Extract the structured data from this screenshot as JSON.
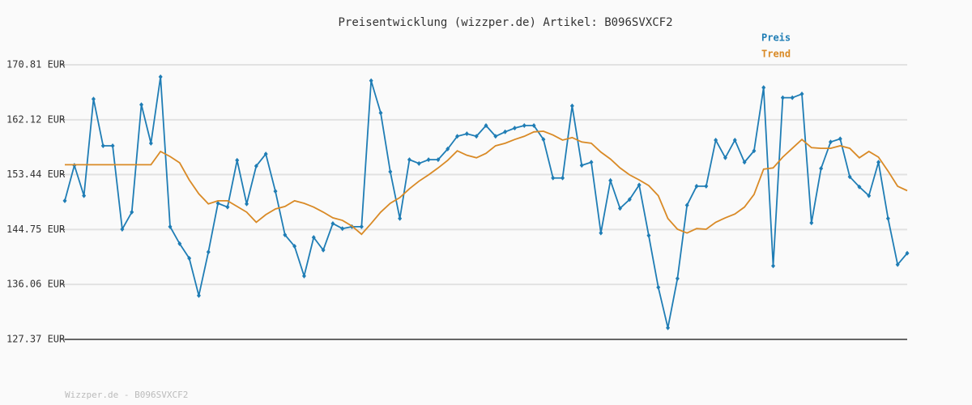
{
  "chart_data": {
    "type": "line",
    "title": "Preisentwicklung (wizzper.de) Artikel: B096SVXCF2",
    "footer": "Wizzper.de - B096SVXCF2",
    "ylim": [
      127.37,
      170.81
    ],
    "yticks": [
      {
        "value": 127.37,
        "label": "127.37 EUR"
      },
      {
        "value": 136.06,
        "label": "136.06 EUR"
      },
      {
        "value": 144.75,
        "label": "144.75 EUR"
      },
      {
        "value": 153.44,
        "label": "153.44 EUR"
      },
      {
        "value": 162.12,
        "label": "162.12 EUR"
      },
      {
        "value": 170.81,
        "label": "170.81 EUR"
      }
    ],
    "grid": true,
    "legend": "top-right",
    "series": [
      {
        "name": "Preis",
        "color": "#1f7db5",
        "markers": true,
        "values": [
          149.3,
          154.9,
          150.1,
          165.4,
          158.0,
          158.0,
          144.8,
          147.5,
          164.5,
          158.4,
          168.9,
          145.2,
          142.5,
          140.2,
          134.3,
          141.2,
          148.9,
          148.3,
          155.7,
          148.8,
          154.8,
          156.7,
          150.8,
          143.9,
          142.1,
          137.4,
          143.5,
          141.5,
          145.7,
          144.9,
          145.2,
          145.2,
          168.3,
          163.2,
          153.9,
          146.5,
          155.8,
          155.2,
          155.8,
          155.8,
          157.5,
          159.5,
          159.9,
          159.5,
          161.2,
          159.5,
          160.2,
          160.8,
          161.2,
          161.2,
          159.0,
          152.9,
          152.9,
          164.3,
          154.9,
          155.4,
          144.2,
          152.5,
          148.1,
          149.5,
          151.8,
          143.8,
          135.6,
          129.2,
          137.0,
          148.6,
          151.6,
          151.6,
          158.9,
          156.1,
          158.9,
          155.4,
          157.2,
          167.2,
          139.0,
          165.6,
          165.6,
          166.2,
          145.8,
          154.4,
          158.6,
          159.1,
          153.1,
          151.5,
          150.1,
          155.4,
          146.5,
          139.2,
          141.0
        ]
      },
      {
        "name": "Trend",
        "color": "#d98a26",
        "markers": false,
        "values": [
          155.0,
          155.0,
          155.0,
          155.0,
          155.0,
          155.0,
          155.0,
          155.0,
          155.0,
          155.0,
          157.1,
          156.3,
          155.3,
          152.6,
          150.4,
          148.8,
          149.3,
          149.3,
          148.4,
          147.5,
          145.9,
          147.1,
          148.0,
          148.4,
          149.3,
          148.9,
          148.3,
          147.5,
          146.6,
          146.2,
          145.3,
          144.0,
          145.7,
          147.5,
          148.9,
          149.8,
          151.2,
          152.4,
          153.4,
          154.5,
          155.7,
          157.2,
          156.5,
          156.1,
          156.8,
          158.0,
          158.4,
          159.0,
          159.5,
          160.2,
          160.3,
          159.7,
          158.9,
          159.3,
          158.6,
          158.4,
          157.0,
          155.9,
          154.5,
          153.4,
          152.6,
          151.7,
          150.1,
          146.5,
          144.8,
          144.2,
          144.9,
          144.8,
          145.9,
          146.6,
          147.2,
          148.3,
          150.3,
          154.3,
          154.5,
          156.2,
          157.6,
          159.0,
          157.7,
          157.6,
          157.6,
          158.0,
          157.6,
          156.1,
          157.1,
          156.2,
          154.0,
          151.6,
          150.9
        ]
      }
    ]
  }
}
